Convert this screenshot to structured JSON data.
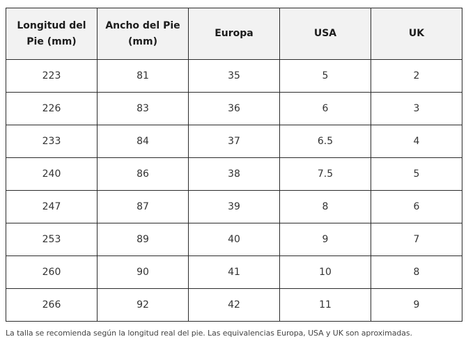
{
  "table": {
    "headers": [
      [
        "Longitud del",
        "Pie (mm)"
      ],
      [
        "Ancho del Pie",
        "(mm)"
      ],
      [
        "Europa"
      ],
      [
        "USA"
      ],
      [
        "UK"
      ]
    ],
    "rows": [
      [
        "223",
        "81",
        "35",
        "5",
        "2"
      ],
      [
        "226",
        "83",
        "36",
        "6",
        "3"
      ],
      [
        "233",
        "84",
        "37",
        "6.5",
        "4"
      ],
      [
        "240",
        "86",
        "38",
        "7.5",
        "5"
      ],
      [
        "247",
        "87",
        "39",
        "8",
        "6"
      ],
      [
        "253",
        "89",
        "40",
        "9",
        "7"
      ],
      [
        "260",
        "90",
        "41",
        "10",
        "8"
      ],
      [
        "266",
        "92",
        "42",
        "11",
        "9"
      ]
    ]
  },
  "note": "La talla se recomienda según la longitud real del pie. Las equivalencias Europa, USA y UK son aproximadas."
}
